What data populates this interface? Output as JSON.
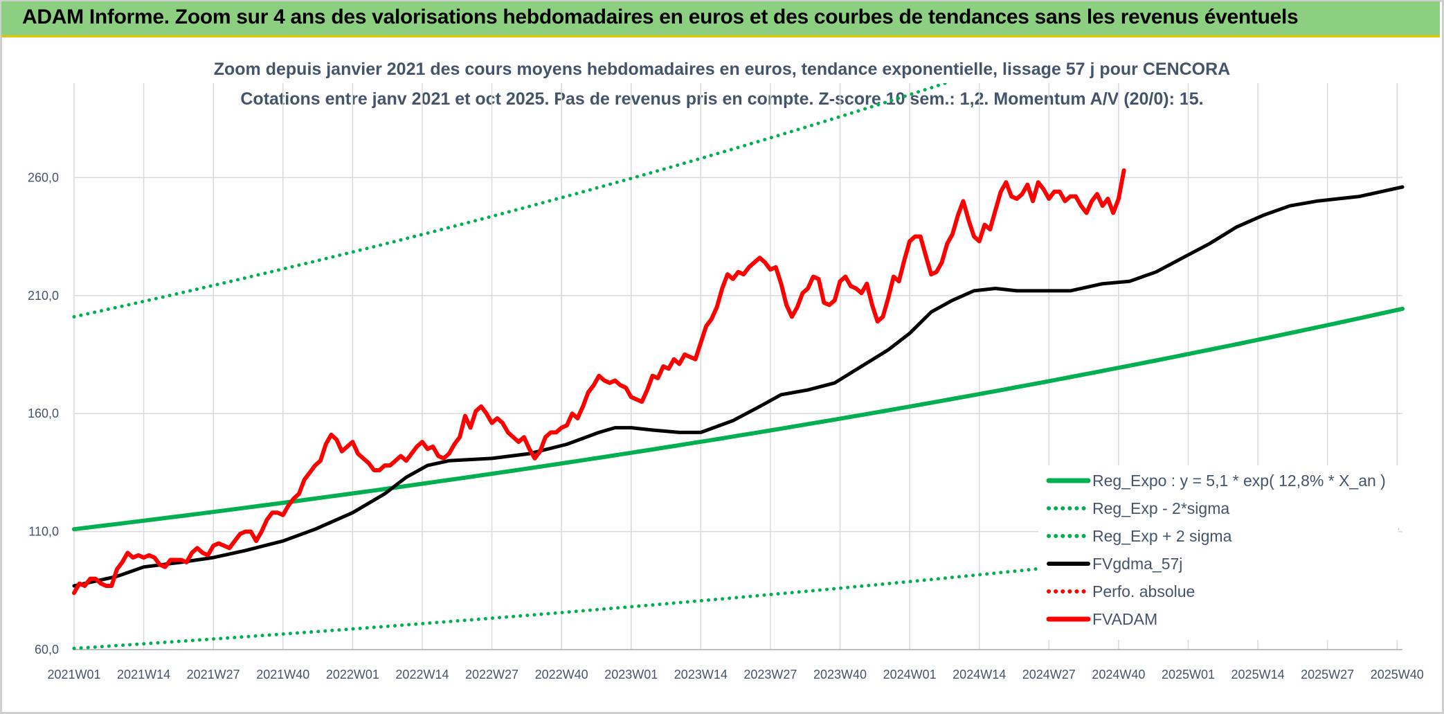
{
  "banner": {
    "text": "ADAM Informe. Zoom sur 4 ans des valorisations hebdomadaires en euros et des courbes de tendances sans les revenus éventuels"
  },
  "chart_data": {
    "type": "line",
    "title": "Zoom depuis janvier 2021 des cours moyens hebdomadaires en euros, tendance exponentielle, lissage 57 j pour CENCORA",
    "subtitle": "Cotations entre janv 2021 et oct 2025. Pas de revenus pris en compte. Z-score 10 sem.: 1,2. Momentum A/V (20/0): 15.",
    "xlabel": "",
    "ylabel": "",
    "ylim": [
      60,
      300
    ],
    "yticks": [
      60,
      110,
      160,
      210,
      260
    ],
    "ytick_labels": [
      "60,0",
      "110,0",
      "160,0",
      "210,0",
      "260,0"
    ],
    "xlim": [
      0,
      248
    ],
    "x_tick_positions": [
      0,
      13,
      26,
      39,
      52,
      65,
      78,
      91,
      104,
      117,
      130,
      143,
      156,
      169,
      182,
      195,
      208,
      221,
      234,
      247
    ],
    "x_tick_labels": [
      "2021W01",
      "2021W14",
      "2021W27",
      "2021W40",
      "2022W01",
      "2022W14",
      "2022W27",
      "2022W40",
      "2023W01",
      "2023W14",
      "2023W27",
      "2023W40",
      "2024W01",
      "2024W14",
      "2024W27",
      "2024W40",
      "2025W01",
      "2025W14",
      "2025W27",
      "2025W40"
    ],
    "grid": true,
    "legend_position": "bottom-right",
    "colors": {
      "green": "#00b050",
      "black": "#000000",
      "red": "#ff0000",
      "text": "#44546a",
      "grid": "#d9d9d9"
    },
    "series": [
      {
        "name": "Reg_Expo : y = 5,1 * exp( 12,8% *  X_an )",
        "style": "solid",
        "color": "#00b050",
        "model": "exponential",
        "start": 111,
        "annual_growth": 0.128
      },
      {
        "name": "Reg_Exp - 2*sigma",
        "style": "dotted",
        "color": "#00b050",
        "model": "exponential",
        "start": 60.5,
        "annual_growth": 0.128
      },
      {
        "name": "Reg_Exp + 2 sigma",
        "style": "dotted",
        "color": "#00b050",
        "model": "exponential",
        "start": 201,
        "annual_growth": 0.128
      },
      {
        "name": "FVgdma_57j",
        "style": "solid",
        "color": "#000000",
        "points": [
          [
            0,
            87
          ],
          [
            8,
            91
          ],
          [
            13,
            95
          ],
          [
            20,
            97
          ],
          [
            26,
            99
          ],
          [
            32,
            102
          ],
          [
            39,
            106
          ],
          [
            45,
            111
          ],
          [
            52,
            118
          ],
          [
            58,
            126
          ],
          [
            62,
            133
          ],
          [
            66,
            138
          ],
          [
            70,
            140
          ],
          [
            78,
            141
          ],
          [
            85,
            143
          ],
          [
            92,
            147
          ],
          [
            98,
            152
          ],
          [
            101,
            154
          ],
          [
            104,
            154
          ],
          [
            108,
            153
          ],
          [
            113,
            152
          ],
          [
            117,
            152
          ],
          [
            123,
            157
          ],
          [
            128,
            163
          ],
          [
            132,
            168
          ],
          [
            137,
            170
          ],
          [
            142,
            173
          ],
          [
            147,
            180
          ],
          [
            152,
            187
          ],
          [
            156,
            194
          ],
          [
            160,
            203
          ],
          [
            164,
            208
          ],
          [
            168,
            212
          ],
          [
            172,
            213
          ],
          [
            176,
            212
          ],
          [
            180,
            212
          ],
          [
            186,
            212
          ],
          [
            192,
            215
          ],
          [
            197,
            216
          ],
          [
            202,
            220
          ],
          [
            207,
            226
          ],
          [
            212,
            232
          ],
          [
            217,
            239
          ],
          [
            222,
            244
          ],
          [
            227,
            248
          ],
          [
            232,
            250
          ],
          [
            236,
            251
          ],
          [
            240,
            252
          ],
          [
            244,
            254
          ],
          [
            248,
            256
          ]
        ]
      },
      {
        "name": "Perfo. absolue",
        "style": "dotted",
        "color": "#ff0000",
        "points": []
      },
      {
        "name": "FVADAM",
        "style": "solid",
        "color": "#ff0000",
        "points": [
          [
            0,
            84
          ],
          [
            1,
            88
          ],
          [
            2,
            87
          ],
          [
            3,
            90
          ],
          [
            4,
            90
          ],
          [
            5,
            88
          ],
          [
            6,
            87
          ],
          [
            7,
            87
          ],
          [
            8,
            94
          ],
          [
            9,
            97
          ],
          [
            10,
            101
          ],
          [
            11,
            99
          ],
          [
            12,
            100
          ],
          [
            13,
            99
          ],
          [
            14,
            100
          ],
          [
            15,
            99
          ],
          [
            16,
            96
          ],
          [
            17,
            95
          ],
          [
            18,
            98
          ],
          [
            19,
            98
          ],
          [
            20,
            98
          ],
          [
            21,
            97
          ],
          [
            22,
            101
          ],
          [
            23,
            103
          ],
          [
            24,
            101
          ],
          [
            25,
            100
          ],
          [
            26,
            104
          ],
          [
            27,
            105
          ],
          [
            28,
            104
          ],
          [
            29,
            103
          ],
          [
            30,
            106
          ],
          [
            31,
            109
          ],
          [
            32,
            110
          ],
          [
            33,
            110
          ],
          [
            34,
            106
          ],
          [
            35,
            110
          ],
          [
            36,
            115
          ],
          [
            37,
            118
          ],
          [
            38,
            118
          ],
          [
            39,
            117
          ],
          [
            40,
            121
          ],
          [
            41,
            124
          ],
          [
            42,
            126
          ],
          [
            43,
            132
          ],
          [
            44,
            135
          ],
          [
            45,
            138
          ],
          [
            46,
            140
          ],
          [
            47,
            147
          ],
          [
            48,
            151
          ],
          [
            49,
            149
          ],
          [
            50,
            144
          ],
          [
            51,
            146
          ],
          [
            52,
            148
          ],
          [
            53,
            143
          ],
          [
            54,
            141
          ],
          [
            55,
            139
          ],
          [
            56,
            136
          ],
          [
            57,
            136
          ],
          [
            58,
            138
          ],
          [
            59,
            138
          ],
          [
            60,
            140
          ],
          [
            61,
            142
          ],
          [
            62,
            140
          ],
          [
            63,
            143
          ],
          [
            64,
            146
          ],
          [
            65,
            148
          ],
          [
            66,
            145
          ],
          [
            67,
            146
          ],
          [
            68,
            142
          ],
          [
            69,
            141
          ],
          [
            70,
            143
          ],
          [
            71,
            147
          ],
          [
            72,
            150
          ],
          [
            73,
            159
          ],
          [
            74,
            154
          ],
          [
            75,
            161
          ],
          [
            76,
            163
          ],
          [
            77,
            160
          ],
          [
            78,
            156
          ],
          [
            79,
            158
          ],
          [
            80,
            156
          ],
          [
            81,
            152
          ],
          [
            82,
            150
          ],
          [
            83,
            148
          ],
          [
            84,
            150
          ],
          [
            85,
            145
          ],
          [
            86,
            141
          ],
          [
            87,
            144
          ],
          [
            88,
            150
          ],
          [
            89,
            152
          ],
          [
            90,
            152
          ],
          [
            91,
            154
          ],
          [
            92,
            155
          ],
          [
            93,
            160
          ],
          [
            94,
            158
          ],
          [
            95,
            163
          ],
          [
            96,
            169
          ],
          [
            97,
            172
          ],
          [
            98,
            176
          ],
          [
            99,
            174
          ],
          [
            100,
            173
          ],
          [
            101,
            174
          ],
          [
            102,
            172
          ],
          [
            103,
            171
          ],
          [
            104,
            167
          ],
          [
            105,
            166
          ],
          [
            106,
            165
          ],
          [
            107,
            170
          ],
          [
            108,
            176
          ],
          [
            109,
            175
          ],
          [
            110,
            180
          ],
          [
            111,
            179
          ],
          [
            112,
            183
          ],
          [
            113,
            181
          ],
          [
            114,
            185
          ],
          [
            115,
            184
          ],
          [
            116,
            183
          ],
          [
            117,
            190
          ],
          [
            118,
            197
          ],
          [
            119,
            200
          ],
          [
            120,
            205
          ],
          [
            121,
            213
          ],
          [
            122,
            219
          ],
          [
            123,
            217
          ],
          [
            124,
            220
          ],
          [
            125,
            219
          ],
          [
            126,
            222
          ],
          [
            127,
            224
          ],
          [
            128,
            226
          ],
          [
            129,
            224
          ],
          [
            130,
            221
          ],
          [
            131,
            222
          ],
          [
            132,
            215
          ],
          [
            133,
            206
          ],
          [
            134,
            201
          ],
          [
            135,
            205
          ],
          [
            136,
            211
          ],
          [
            137,
            213
          ],
          [
            138,
            218
          ],
          [
            139,
            217
          ],
          [
            140,
            207
          ],
          [
            141,
            206
          ],
          [
            142,
            208
          ],
          [
            143,
            216
          ],
          [
            144,
            218
          ],
          [
            145,
            214
          ],
          [
            146,
            213
          ],
          [
            147,
            211
          ],
          [
            148,
            215
          ],
          [
            149,
            206
          ],
          [
            150,
            199
          ],
          [
            151,
            201
          ],
          [
            152,
            209
          ],
          [
            153,
            218
          ],
          [
            154,
            216
          ],
          [
            155,
            225
          ],
          [
            156,
            233
          ],
          [
            157,
            235
          ],
          [
            158,
            235
          ],
          [
            159,
            227
          ],
          [
            160,
            219
          ],
          [
            161,
            220
          ],
          [
            162,
            224
          ],
          [
            163,
            232
          ],
          [
            164,
            236
          ],
          [
            165,
            244
          ],
          [
            166,
            250
          ],
          [
            167,
            242
          ],
          [
            168,
            235
          ],
          [
            169,
            233
          ],
          [
            170,
            240
          ],
          [
            171,
            238
          ],
          [
            172,
            246
          ],
          [
            173,
            254
          ],
          [
            174,
            258
          ],
          [
            175,
            252
          ],
          [
            176,
            251
          ],
          [
            177,
            253
          ],
          [
            178,
            257
          ],
          [
            179,
            250
          ],
          [
            180,
            258
          ],
          [
            181,
            255
          ],
          [
            182,
            251
          ],
          [
            183,
            254
          ],
          [
            184,
            254
          ],
          [
            185,
            250
          ],
          [
            186,
            252
          ],
          [
            187,
            252
          ],
          [
            188,
            248
          ],
          [
            189,
            245
          ],
          [
            190,
            250
          ],
          [
            191,
            253
          ],
          [
            192,
            248
          ],
          [
            193,
            251
          ],
          [
            194,
            245
          ],
          [
            195,
            251
          ],
          [
            196,
            263
          ]
        ]
      }
    ]
  }
}
